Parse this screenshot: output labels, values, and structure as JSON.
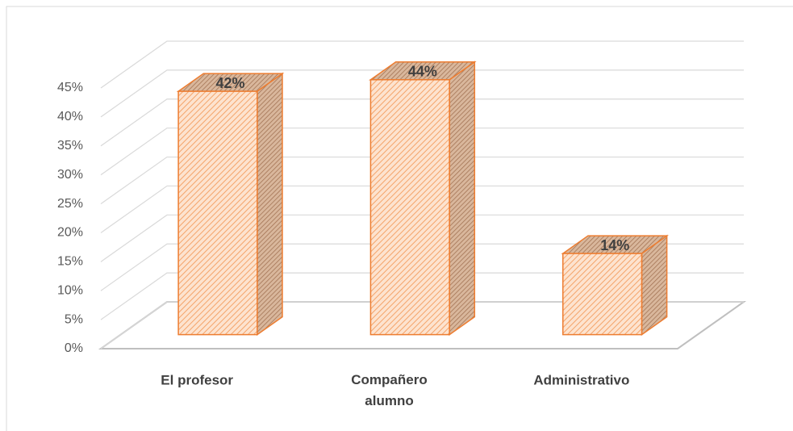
{
  "chart_data": {
    "type": "bar3d",
    "categories": [
      "El profesor",
      "Compañero alumno",
      "Administrativo"
    ],
    "values": [
      42,
      44,
      14
    ],
    "value_labels": [
      "42%",
      "44%",
      "14%"
    ],
    "color": "#ed7d31",
    "ylim": [
      0,
      45
    ],
    "yticks": [
      {
        "value": 0,
        "label": "0%"
      },
      {
        "value": 5,
        "label": "5%"
      },
      {
        "value": 10,
        "label": "10%"
      },
      {
        "value": 15,
        "label": "15%"
      },
      {
        "value": 20,
        "label": "20%"
      },
      {
        "value": 25,
        "label": "25%"
      },
      {
        "value": 30,
        "label": "30%"
      },
      {
        "value": 35,
        "label": "35%"
      },
      {
        "value": 40,
        "label": "40%"
      },
      {
        "value": 45,
        "label": "45%"
      }
    ],
    "grid": true
  }
}
